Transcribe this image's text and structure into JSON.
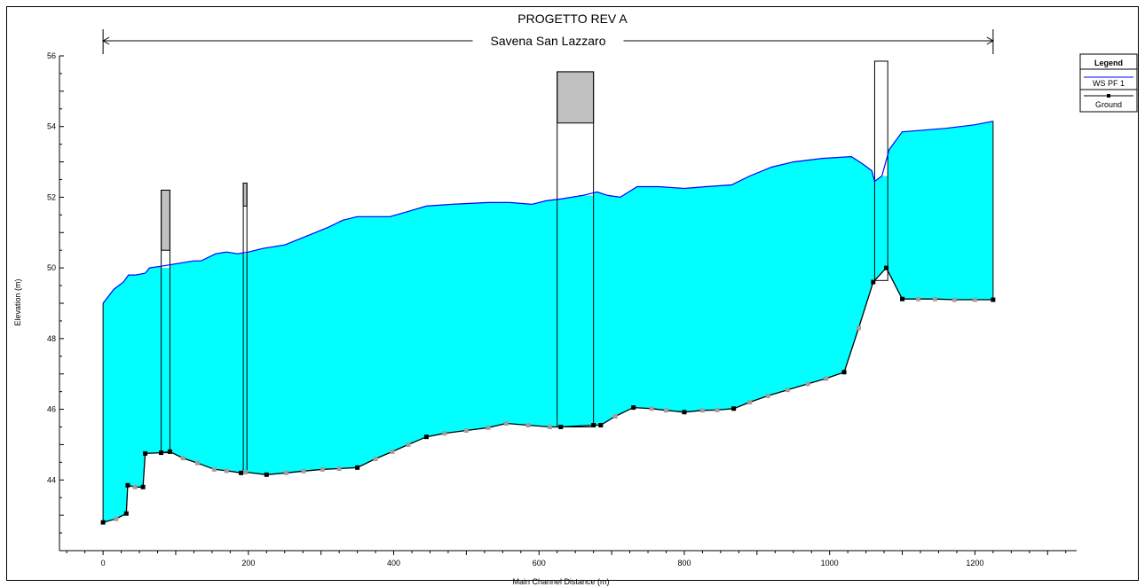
{
  "chart_data": {
    "type": "area",
    "title": "PROGETTO REV A",
    "reach_label": "Savena San Lazzaro",
    "xlabel": "Main Channel Distance (m)",
    "ylabel": "Elevation (m)",
    "xlim": [
      -60,
      1340
    ],
    "ylim": [
      42,
      56
    ],
    "x_ticks": [
      0,
      200,
      400,
      600,
      800,
      1000,
      1200
    ],
    "y_ticks": [
      44,
      46,
      48,
      50,
      52,
      54,
      56
    ],
    "reach_extent": [
      0,
      1225
    ],
    "legend": {
      "title": "Legend",
      "placement": "right",
      "entries": [
        "WS  PF 1",
        "Ground"
      ]
    },
    "colors": {
      "water_fill": "#00FFFF",
      "water_line": "#0000FF",
      "ground_line": "#000000",
      "ground_point_major": "#000000",
      "ground_point_minor": "#9E9E9E",
      "deck_fill": "#C0C0C0",
      "structure_outline": "#000000"
    },
    "series": [
      {
        "name": "WS  PF 1",
        "x": [
          0,
          15,
          28,
          35,
          45,
          58,
          64,
          80,
          95,
          125,
          135,
          155,
          170,
          185,
          200,
          220,
          250,
          280,
          310,
          330,
          350,
          370,
          395,
          420,
          445,
          480,
          530,
          560,
          590,
          610,
          630,
          660,
          680,
          695,
          712,
          735,
          765,
          800,
          830,
          865,
          890,
          920,
          950,
          990,
          1030,
          1045,
          1058,
          1062,
          1072,
          1082,
          1100,
          1130,
          1160,
          1200,
          1225
        ],
        "y": [
          49.0,
          49.4,
          49.6,
          49.8,
          49.8,
          49.85,
          50.0,
          50.05,
          50.1,
          50.2,
          50.2,
          50.4,
          50.45,
          50.4,
          50.45,
          50.55,
          50.65,
          50.9,
          51.15,
          51.35,
          51.45,
          51.45,
          51.45,
          51.6,
          51.75,
          51.8,
          51.85,
          51.85,
          51.8,
          51.9,
          51.95,
          52.05,
          52.15,
          52.05,
          52.0,
          52.3,
          52.3,
          52.25,
          52.3,
          52.35,
          52.6,
          52.85,
          53.0,
          53.1,
          53.15,
          52.95,
          52.75,
          52.45,
          52.6,
          53.35,
          53.85,
          53.9,
          53.95,
          54.05,
          54.15
        ]
      },
      {
        "name": "Ground",
        "x": [
          0,
          18,
          32,
          34,
          44,
          55,
          58,
          80,
          92,
          110,
          130,
          153,
          170,
          190,
          196,
          225,
          252,
          276,
          302,
          325,
          350,
          375,
          398,
          420,
          445,
          470,
          500,
          530,
          555,
          585,
          615,
          630,
          675,
          685,
          705,
          730,
          755,
          775,
          800,
          825,
          845,
          868,
          890,
          915,
          942,
          970,
          995,
          1020,
          1040,
          1060,
          1078,
          1100,
          1122,
          1145,
          1172,
          1200,
          1225
        ],
        "y": [
          42.8,
          42.9,
          43.05,
          43.85,
          43.8,
          43.8,
          44.75,
          44.77,
          44.8,
          44.62,
          44.48,
          44.3,
          44.26,
          44.2,
          44.22,
          44.15,
          44.2,
          44.25,
          44.3,
          44.32,
          44.35,
          44.6,
          44.8,
          45.0,
          45.22,
          45.32,
          45.4,
          45.48,
          45.6,
          45.55,
          45.5,
          45.5,
          45.55,
          45.55,
          45.8,
          46.05,
          46.02,
          45.97,
          45.92,
          45.97,
          45.98,
          46.02,
          46.2,
          46.38,
          46.55,
          46.72,
          46.87,
          47.05,
          48.3,
          49.6,
          50.0,
          49.12,
          49.12,
          49.12,
          49.1,
          49.1,
          49.1
        ]
      }
    ],
    "structures": [
      {
        "x_start": 80,
        "x_end": 92,
        "top": 52.2,
        "deck_bottom": 50.5,
        "low_chord": 50.0
      },
      {
        "x_start": 193,
        "x_end": 198,
        "top": 52.4,
        "deck_bottom": 51.75,
        "low_chord": 50.4
      },
      {
        "x_start": 625,
        "x_end": 675,
        "top": 55.55,
        "deck_bottom": 54.1,
        "low_chord": 52.05
      },
      {
        "x_start": 1062,
        "x_end": 1080,
        "top": 55.85,
        "deck_bottom": 55.85,
        "low_chord": 52.6
      }
    ]
  }
}
